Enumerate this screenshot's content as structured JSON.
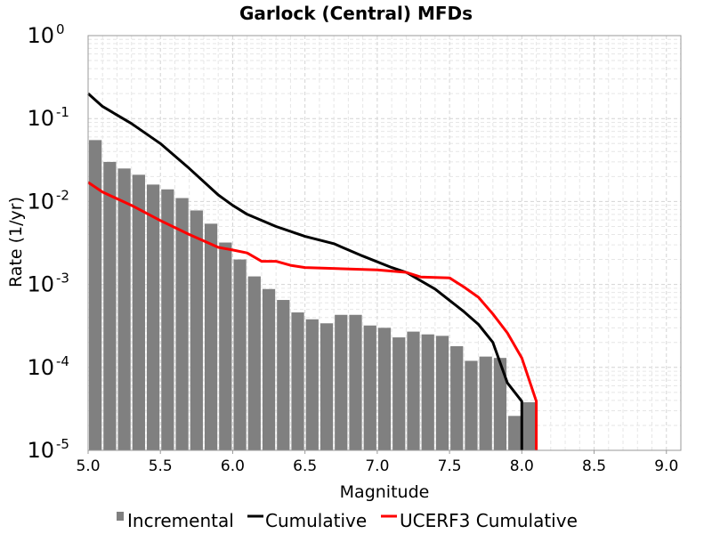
{
  "chart_data": {
    "type": "bar",
    "title": "Garlock (Central) MFDs",
    "xlabel": "Magnitude",
    "ylabel": "Rate (1/yr)",
    "xlim": [
      5.0,
      9.1
    ],
    "ylim": [
      1e-05,
      1
    ],
    "yscale": "log",
    "grid": true,
    "legend_position": "bottom",
    "x_ticks": [
      "5.0",
      "5.5",
      "6.0",
      "6.5",
      "7.0",
      "7.5",
      "8.0",
      "8.5",
      "9.0"
    ],
    "y_ticks": [
      {
        "base": "10",
        "exp": "-5"
      },
      {
        "base": "10",
        "exp": "-4"
      },
      {
        "base": "10",
        "exp": "-3"
      },
      {
        "base": "10",
        "exp": "-2"
      },
      {
        "base": "10",
        "exp": "-1"
      },
      {
        "base": "10",
        "exp": "0"
      }
    ],
    "series": [
      {
        "name": "Incremental",
        "type": "bar",
        "color": "#808080",
        "x": [
          5.05,
          5.15,
          5.25,
          5.35,
          5.45,
          5.55,
          5.65,
          5.75,
          5.85,
          5.95,
          6.05,
          6.15,
          6.25,
          6.35,
          6.45,
          6.55,
          6.65,
          6.75,
          6.85,
          6.95,
          7.05,
          7.15,
          7.25,
          7.35,
          7.45,
          7.55,
          7.65,
          7.75,
          7.85,
          7.95,
          8.05
        ],
        "values": [
          0.055,
          0.03,
          0.025,
          0.021,
          0.016,
          0.014,
          0.011,
          0.0078,
          0.0054,
          0.0032,
          0.002,
          0.00125,
          0.00088,
          0.00065,
          0.00046,
          0.00038,
          0.00034,
          0.00043,
          0.00043,
          0.00032,
          0.0003,
          0.00023,
          0.00027,
          0.00025,
          0.00024,
          0.00018,
          0.00012,
          0.000135,
          0.00013,
          2.6e-05,
          3.8e-05
        ]
      },
      {
        "name": "Cumulative",
        "type": "line",
        "color": "#000000",
        "x": [
          5.0,
          5.1,
          5.3,
          5.5,
          5.7,
          5.9,
          6.0,
          6.1,
          6.3,
          6.5,
          6.7,
          6.9,
          7.1,
          7.2,
          7.4,
          7.6,
          7.7,
          7.8,
          7.9,
          8.0,
          8.0
        ],
        "values": [
          0.2,
          0.14,
          0.087,
          0.05,
          0.025,
          0.012,
          0.009,
          0.007,
          0.005,
          0.0038,
          0.0031,
          0.0022,
          0.0016,
          0.0014,
          0.00088,
          0.00047,
          0.00033,
          0.0002,
          6.5e-05,
          3.9e-05,
          1e-05
        ]
      },
      {
        "name": "UCERF3 Cumulative",
        "type": "line",
        "color": "#ff0000",
        "x": [
          5.0,
          5.1,
          5.3,
          5.5,
          5.7,
          5.9,
          6.0,
          6.1,
          6.2,
          6.3,
          6.4,
          6.5,
          7.0,
          7.2,
          7.3,
          7.5,
          7.6,
          7.7,
          7.8,
          7.9,
          8.0,
          8.1,
          8.1
        ],
        "values": [
          0.017,
          0.013,
          0.009,
          0.0059,
          0.004,
          0.0028,
          0.0026,
          0.0024,
          0.0019,
          0.0019,
          0.0017,
          0.0016,
          0.0015,
          0.0014,
          0.00123,
          0.0012,
          0.00093,
          0.0007,
          0.00044,
          0.00026,
          0.00013,
          3.9e-05,
          1e-05
        ]
      }
    ]
  }
}
